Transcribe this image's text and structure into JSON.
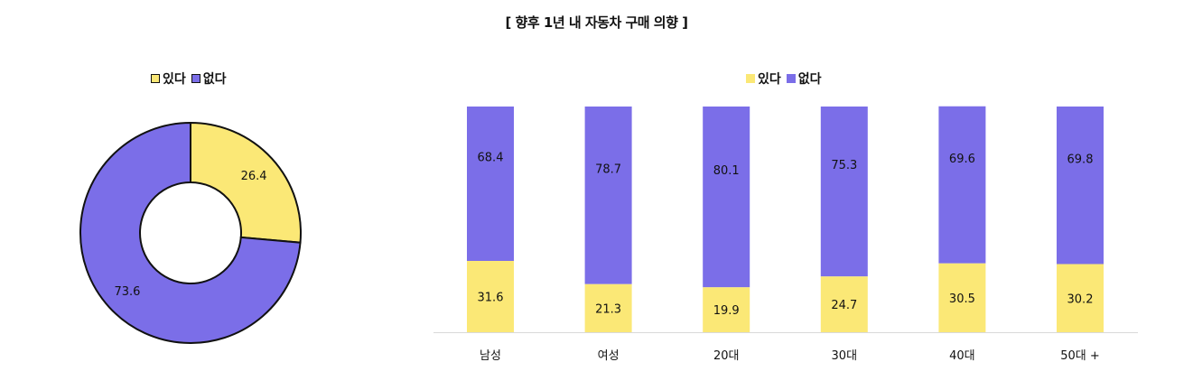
{
  "title": "[ 향후 1년 내 자동차 구매 의향 ]",
  "colors": {
    "yes": "#fbe876",
    "no": "#7b6ee8",
    "axis": "#d9d9d9",
    "text": "#111111"
  },
  "chart_data": [
    {
      "type": "pie",
      "variant": "donut",
      "legend": [
        "있다",
        "없다"
      ],
      "legend_position": "top",
      "slices": [
        {
          "label": "있다",
          "value": 26.4
        },
        {
          "label": "없다",
          "value": 73.6
        }
      ]
    },
    {
      "type": "bar",
      "stacked": true,
      "legend": [
        "있다",
        "없다"
      ],
      "legend_position": "top",
      "categories": [
        "남성",
        "여성",
        "20대",
        "30대",
        "40대",
        "50대 +"
      ],
      "series": [
        {
          "name": "있다",
          "values": [
            31.6,
            21.3,
            19.9,
            24.7,
            30.5,
            30.2
          ]
        },
        {
          "name": "없다",
          "values": [
            68.4,
            78.7,
            80.1,
            75.3,
            69.6,
            69.8
          ]
        }
      ],
      "ylim": [
        0,
        100
      ]
    }
  ]
}
